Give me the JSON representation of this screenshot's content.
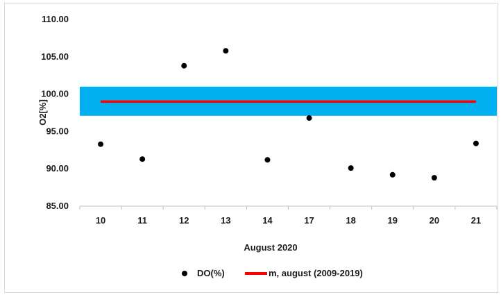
{
  "chart_data": {
    "type": "scatter",
    "title": "",
    "xlabel": "August  2020",
    "ylabel": "O2[%]",
    "categories": [
      "10",
      "11",
      "12",
      "13",
      "14",
      "17",
      "18",
      "19",
      "20",
      "21"
    ],
    "ylim": [
      85,
      110
    ],
    "yticks": [
      "85.00",
      "90.00",
      "95.00",
      "100.00",
      "105.00",
      "110.00"
    ],
    "series": [
      {
        "name": "DO(%)",
        "kind": "points",
        "color": "#000000",
        "values": [
          93.3,
          91.3,
          103.8,
          105.8,
          91.2,
          96.8,
          90.1,
          89.2,
          88.8,
          93.4
        ]
      },
      {
        "name": "m, august (2009-2019)",
        "kind": "line",
        "color": "#ff0000",
        "values": [
          99.0,
          99.0,
          99.0,
          99.0,
          99.0,
          99.0,
          99.0,
          99.0,
          99.0,
          99.0
        ]
      }
    ],
    "band": {
      "from": 97.1,
      "to": 101.0,
      "color": "#00b0f0"
    },
    "grid": false,
    "legend": "bottom"
  }
}
